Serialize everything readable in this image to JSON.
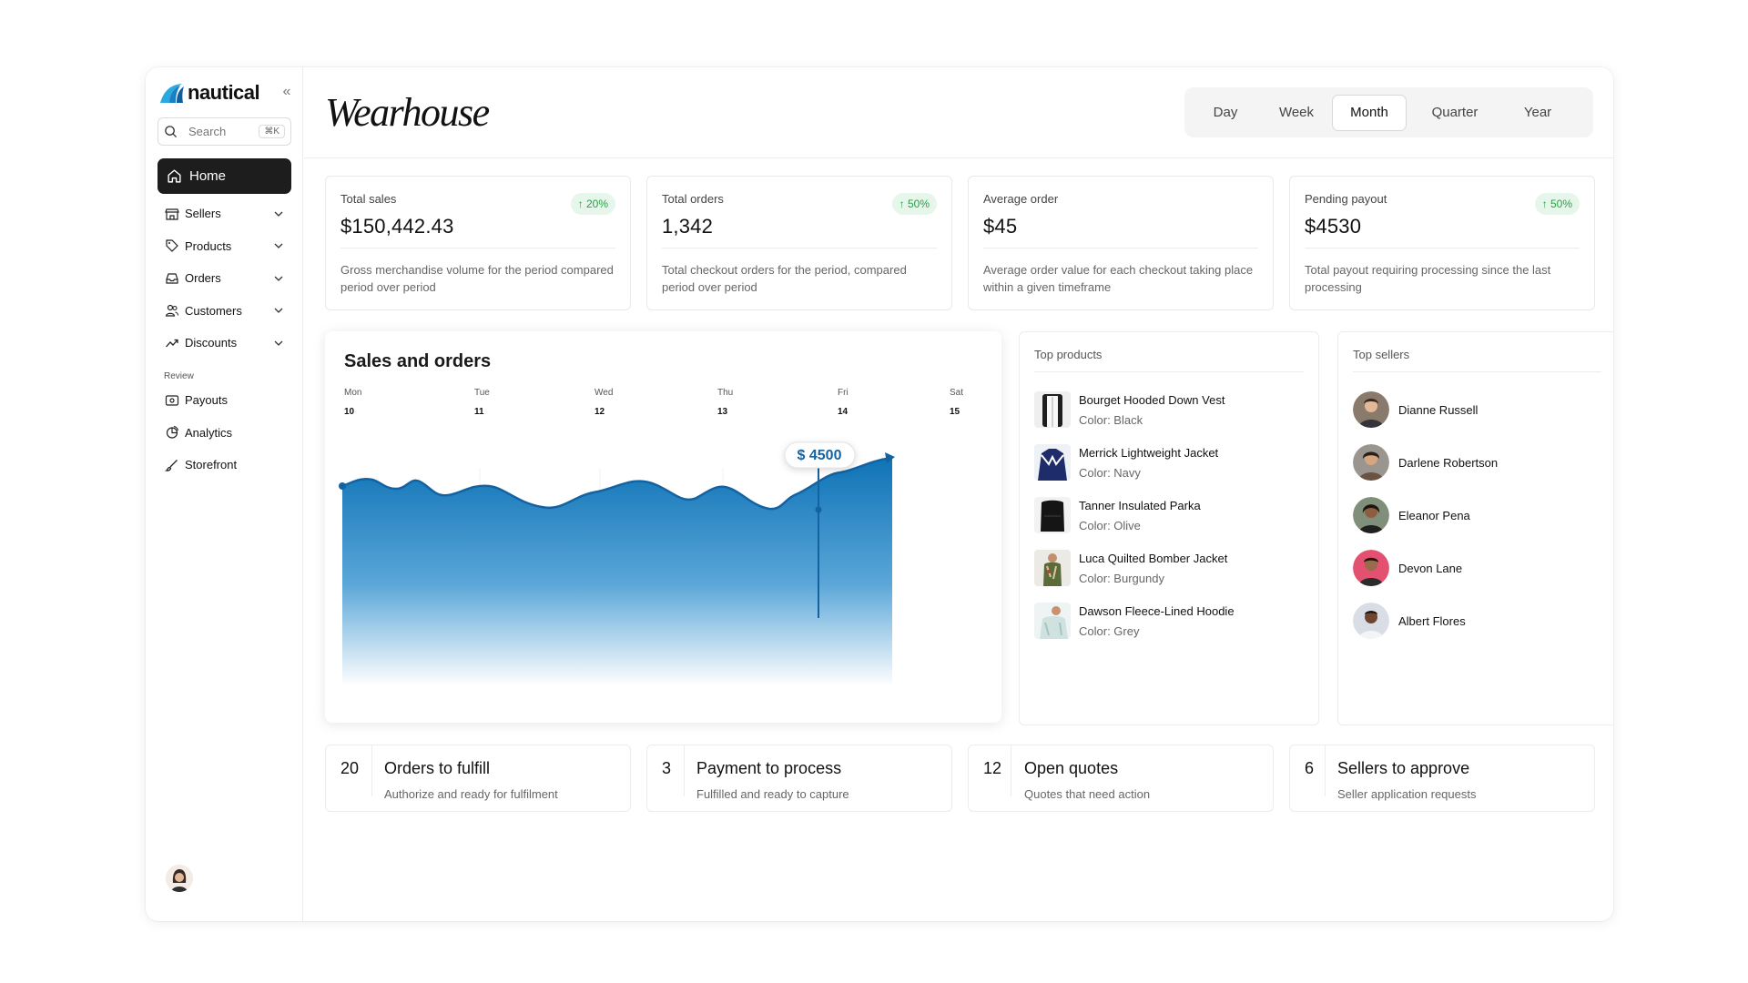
{
  "sidebar": {
    "logo_text": "nautical",
    "search": {
      "placeholder": "Search",
      "shortcut": "⌘K"
    },
    "home_label": "Home",
    "items": [
      {
        "label": "Sellers",
        "icon": "store-icon"
      },
      {
        "label": "Products",
        "icon": "tag-icon"
      },
      {
        "label": "Orders",
        "icon": "inbox-icon"
      },
      {
        "label": "Customers",
        "icon": "users-icon"
      },
      {
        "label": "Discounts",
        "icon": "trend-icon"
      }
    ],
    "review_label": "Review",
    "review_items": [
      {
        "label": "Payouts",
        "icon": "payouts-icon"
      },
      {
        "label": "Analytics",
        "icon": "analytics-icon"
      },
      {
        "label": "Storefront",
        "icon": "brush-icon"
      }
    ]
  },
  "header": {
    "brand": "Wearhouse",
    "periods": [
      "Day",
      "Week",
      "Month",
      "Quarter",
      "Year"
    ],
    "active_period": "Month"
  },
  "stats": [
    {
      "title": "Total sales",
      "value": "$150,442.43",
      "badge": "20%",
      "desc": "Gross merchandise volume for the period compared period over period"
    },
    {
      "title": "Total orders",
      "value": "1,342",
      "badge": "50%",
      "desc": "Total checkout orders for the period, compared period over period"
    },
    {
      "title": "Average order",
      "value": "$45",
      "badge": "",
      "desc": "Average order value for each checkout taking place within a given timeframe"
    },
    {
      "title": "Pending payout",
      "value": "$4530",
      "badge": "50%",
      "desc": "Total payout requiring processing since the last processing"
    }
  ],
  "sales_chart": {
    "title": "Sales and orders",
    "days": [
      {
        "dow": "Mon",
        "date": "10"
      },
      {
        "dow": "Tue",
        "date": "11"
      },
      {
        "dow": "Wed",
        "date": "12"
      },
      {
        "dow": "Thu",
        "date": "13"
      },
      {
        "dow": "Fri",
        "date": "14"
      },
      {
        "dow": "Sat",
        "date": "15"
      }
    ],
    "tooltip": "$ 4500",
    "accent": "#1776b8"
  },
  "top_products": {
    "title": "Top products",
    "items": [
      {
        "name": "Bourget Hooded Down Vest",
        "color": "Color: Black"
      },
      {
        "name": "Merrick Lightweight Jacket",
        "color": "Color: Navy"
      },
      {
        "name": "Tanner Insulated Parka",
        "color": "Color: Olive"
      },
      {
        "name": "Luca Quilted Bomber Jacket",
        "color": "Color: Burgundy"
      },
      {
        "name": "Dawson Fleece-Lined Hoodie",
        "color": "Color: Grey"
      }
    ]
  },
  "top_sellers": {
    "title": "Top sellers",
    "items": [
      "Dianne Russell",
      "Darlene Robertson",
      "Eleanor Pena",
      "Devon Lane",
      "Albert Flores"
    ]
  },
  "tasks": [
    {
      "count": "20",
      "title": "Orders to fulfill",
      "sub": "Authorize and ready for fulfilment"
    },
    {
      "count": "3",
      "title": "Payment to process",
      "sub": "Fulfilled and ready to capture"
    },
    {
      "count": "12",
      "title": "Open quotes",
      "sub": "Quotes that need action"
    },
    {
      "count": "6",
      "title": "Sellers to approve",
      "sub": "Seller application requests"
    }
  ]
}
